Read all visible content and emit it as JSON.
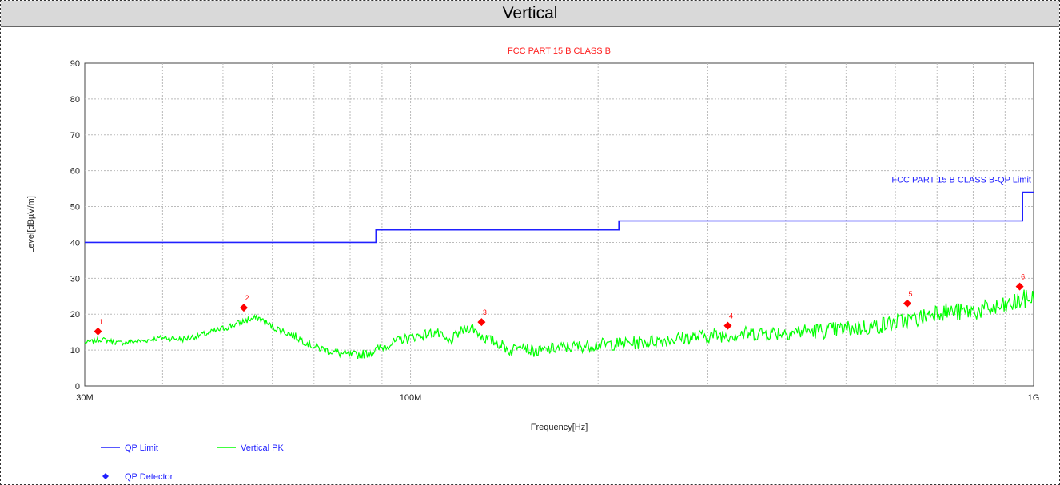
{
  "header": {
    "title": "Vertical"
  },
  "chart_data": {
    "type": "line",
    "title": "FCC PART 15 B CLASS B",
    "xlabel": "Frequency[Hz]",
    "ylabel": "Level[dBµV/m]",
    "x_scale": "log",
    "xlim": [
      30000000,
      1000000000
    ],
    "ylim": [
      0,
      90
    ],
    "x_tick_labels": [
      "30M",
      "100M",
      "1G"
    ],
    "y_ticks": [
      0,
      10,
      20,
      30,
      40,
      50,
      60,
      70,
      80,
      90
    ],
    "grid": true,
    "limit_label": "FCC PART 15 B CLASS B-QP Limit",
    "colors": {
      "limit": "#2020ff",
      "peak": "#00ff00",
      "marker": "#ff0000",
      "title": "#ff2020"
    },
    "series": [
      {
        "name": "QP Limit",
        "x": [
          30000000,
          88000000,
          88000000,
          216000000,
          216000000,
          960000000,
          960000000,
          1000000000
        ],
        "values": [
          40,
          40,
          43.5,
          43.5,
          46,
          46,
          54,
          54
        ]
      },
      {
        "name": "Vertical PK",
        "x": [
          30000000,
          32000000,
          34000000,
          37000000,
          40000000,
          43000000,
          47000000,
          50000000,
          53000000,
          55000000,
          57000000,
          60000000,
          65000000,
          70000000,
          75000000,
          80000000,
          85000000,
          88000000,
          92000000,
          97000000,
          103000000,
          110000000,
          115000000,
          120000000,
          125000000,
          131000000,
          135000000,
          140000000,
          145000000,
          150000000,
          155000000,
          160000000,
          170000000,
          185000000,
          200000000,
          230000000,
          260000000,
          300000000,
          340000000,
          400000000,
          470000000,
          550000000,
          620000000,
          660000000,
          700000000,
          760000000,
          820000000,
          900000000,
          960000000,
          1000000000
        ],
        "values": [
          12,
          13,
          12,
          12.5,
          13.5,
          13,
          14.5,
          16,
          17.5,
          18.5,
          19,
          16.5,
          14,
          11,
          9.5,
          8.5,
          9,
          10,
          11.5,
          13,
          14,
          15,
          12,
          15,
          16.5,
          13.5,
          12.5,
          11.5,
          9.5,
          12.5,
          10,
          9.5,
          10.5,
          11,
          11.5,
          12,
          13,
          14,
          14.5,
          15,
          15.5,
          16.5,
          18,
          19,
          21,
          20.5,
          21,
          22,
          24,
          24.5
        ]
      }
    ],
    "qp_detector": {
      "name": "QP Detector",
      "labels": [
        "1",
        "2",
        "3",
        "4",
        "5",
        "6"
      ],
      "x": [
        31500000,
        54000000,
        130000000,
        323000000,
        627000000,
        950000000
      ],
      "values": [
        15.2,
        21.8,
        17.8,
        16.8,
        23,
        27.7
      ]
    },
    "legend": [
      {
        "name": "QP Limit",
        "color": "#2020ff",
        "kind": "line"
      },
      {
        "name": "Vertical PK",
        "color": "#00ff00",
        "kind": "line"
      },
      {
        "name": "QP Detector",
        "color": "#2020ff",
        "kind": "diamond"
      }
    ]
  }
}
